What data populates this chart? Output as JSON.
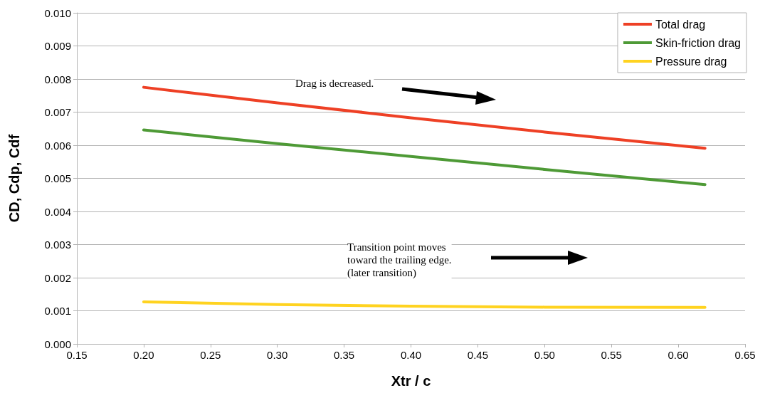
{
  "chart_data": {
    "type": "line",
    "xlabel": "Xtr / c",
    "ylabel": "CD, Cdp, Cdf",
    "x": [
      0.2,
      0.3,
      0.4,
      0.5,
      0.62
    ],
    "series": [
      {
        "name": "Total drag",
        "color": "#ee4025",
        "values": [
          0.00775,
          0.00728,
          0.00683,
          0.0064,
          0.00591
        ]
      },
      {
        "name": "Skin-friction drag",
        "color": "#4e9a36",
        "values": [
          0.00646,
          0.00605,
          0.00566,
          0.00527,
          0.00481
        ]
      },
      {
        "name": "Pressure drag",
        "color": "#ffd320",
        "values": [
          0.00127,
          0.00119,
          0.00114,
          0.00111,
          0.0011
        ]
      }
    ],
    "xlim": [
      0.15,
      0.65
    ],
    "xticks": [
      {
        "value": 0.15,
        "label": "0.15"
      },
      {
        "value": 0.2,
        "label": "0.20"
      },
      {
        "value": 0.25,
        "label": "0.25"
      },
      {
        "value": 0.3,
        "label": "0.30"
      },
      {
        "value": 0.35,
        "label": "0.35"
      },
      {
        "value": 0.4,
        "label": "0.40"
      },
      {
        "value": 0.45,
        "label": "0.45"
      },
      {
        "value": 0.5,
        "label": "0.50"
      },
      {
        "value": 0.55,
        "label": "0.55"
      },
      {
        "value": 0.6,
        "label": "0.60"
      },
      {
        "value": 0.65,
        "label": "0.65"
      }
    ],
    "ylim": [
      0,
      0.01
    ],
    "yticks": [
      {
        "value": 0,
        "label": "0.000"
      },
      {
        "value": 0.001,
        "label": "0.001"
      },
      {
        "value": 0.002,
        "label": "0.002"
      },
      {
        "value": 0.003,
        "label": "0.003"
      },
      {
        "value": 0.004,
        "label": "0.004"
      },
      {
        "value": 0.005,
        "label": "0.005"
      },
      {
        "value": 0.006,
        "label": "0.006"
      },
      {
        "value": 0.007,
        "label": "0.007"
      },
      {
        "value": 0.008,
        "label": "0.008"
      },
      {
        "value": 0.009,
        "label": "0.009"
      },
      {
        "value": 0.01,
        "label": "0.010"
      }
    ],
    "grid": "y",
    "legend": "top right",
    "marker": "none",
    "line_style": "solid",
    "annotations": [
      "Drag is decreased.",
      "Transition point moves\ntoward the trailing edge.\n(later transition)"
    ]
  }
}
